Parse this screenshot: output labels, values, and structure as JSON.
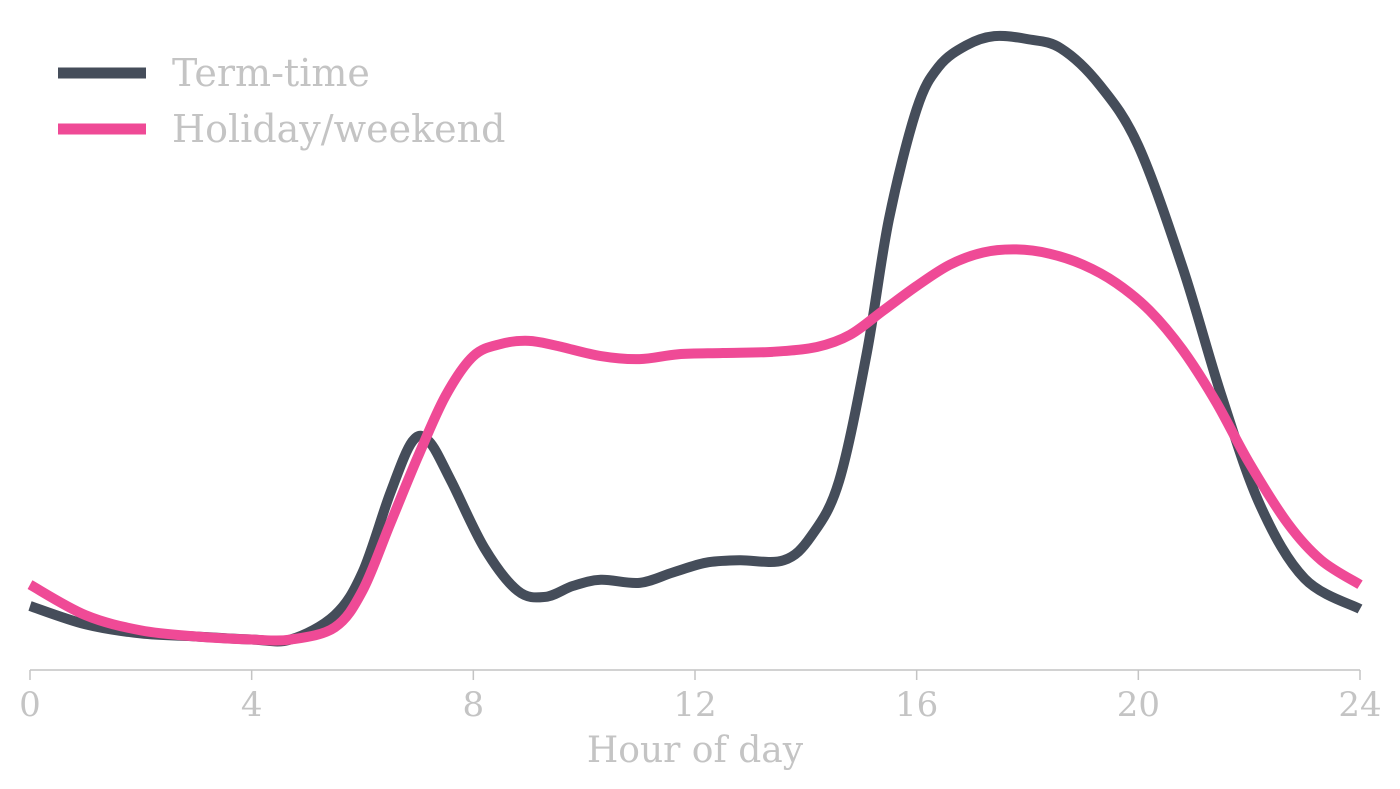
{
  "chart_data": {
    "type": "line",
    "title": "",
    "xlabel": "Hour of day",
    "ylabel": "",
    "xlim": [
      0,
      24
    ],
    "ylim": [
      0,
      1.05
    ],
    "xticks": [
      0,
      4,
      8,
      12,
      16,
      20,
      24
    ],
    "xtick_labels": [
      "0",
      "4",
      "8",
      "12",
      "16",
      "20",
      "24"
    ],
    "legend": "top-left",
    "grid": false,
    "series": [
      {
        "name": "Term-time",
        "color": "#454d5a",
        "x": [
          0,
          1,
          2,
          3,
          4,
          4.7,
          5.5,
          6,
          6.5,
          6.9,
          7.2,
          7.6,
          8.2,
          8.8,
          9.3,
          9.8,
          10.3,
          11,
          11.6,
          12.2,
          12.8,
          13.6,
          14.1,
          14.6,
          15.1,
          15.5,
          16,
          16.4,
          16.9,
          17.4,
          18,
          18.6,
          19.3,
          20,
          20.8,
          21.5,
          22.2,
          23,
          24
        ],
        "y": [
          0.105,
          0.075,
          0.06,
          0.055,
          0.05,
          0.05,
          0.09,
          0.16,
          0.29,
          0.375,
          0.375,
          0.31,
          0.2,
          0.13,
          0.12,
          0.138,
          0.148,
          0.143,
          0.16,
          0.176,
          0.18,
          0.18,
          0.22,
          0.31,
          0.52,
          0.74,
          0.92,
          0.99,
          1.025,
          1.04,
          1.035,
          1.02,
          0.96,
          0.86,
          0.66,
          0.45,
          0.27,
          0.15,
          0.1
        ]
      },
      {
        "name": "Holiday/weekend",
        "color": "#ef4a96",
        "x": [
          0,
          1,
          2,
          3,
          4,
          4.7,
          5.5,
          6,
          6.5,
          7,
          7.5,
          8,
          8.5,
          9,
          9.5,
          10.3,
          11,
          11.7,
          12.5,
          13.4,
          14.2,
          14.8,
          15.4,
          16,
          16.6,
          17.2,
          17.8,
          18.4,
          19,
          19.6,
          20.2,
          20.8,
          21.4,
          22,
          22.7,
          23.3,
          24
        ],
        "y": [
          0.14,
          0.09,
          0.065,
          0.055,
          0.05,
          0.05,
          0.07,
          0.13,
          0.24,
          0.35,
          0.45,
          0.515,
          0.535,
          0.54,
          0.532,
          0.515,
          0.51,
          0.518,
          0.52,
          0.522,
          0.53,
          0.55,
          0.59,
          0.63,
          0.665,
          0.685,
          0.69,
          0.683,
          0.665,
          0.635,
          0.59,
          0.525,
          0.44,
          0.34,
          0.24,
          0.18,
          0.14
        ]
      }
    ]
  }
}
